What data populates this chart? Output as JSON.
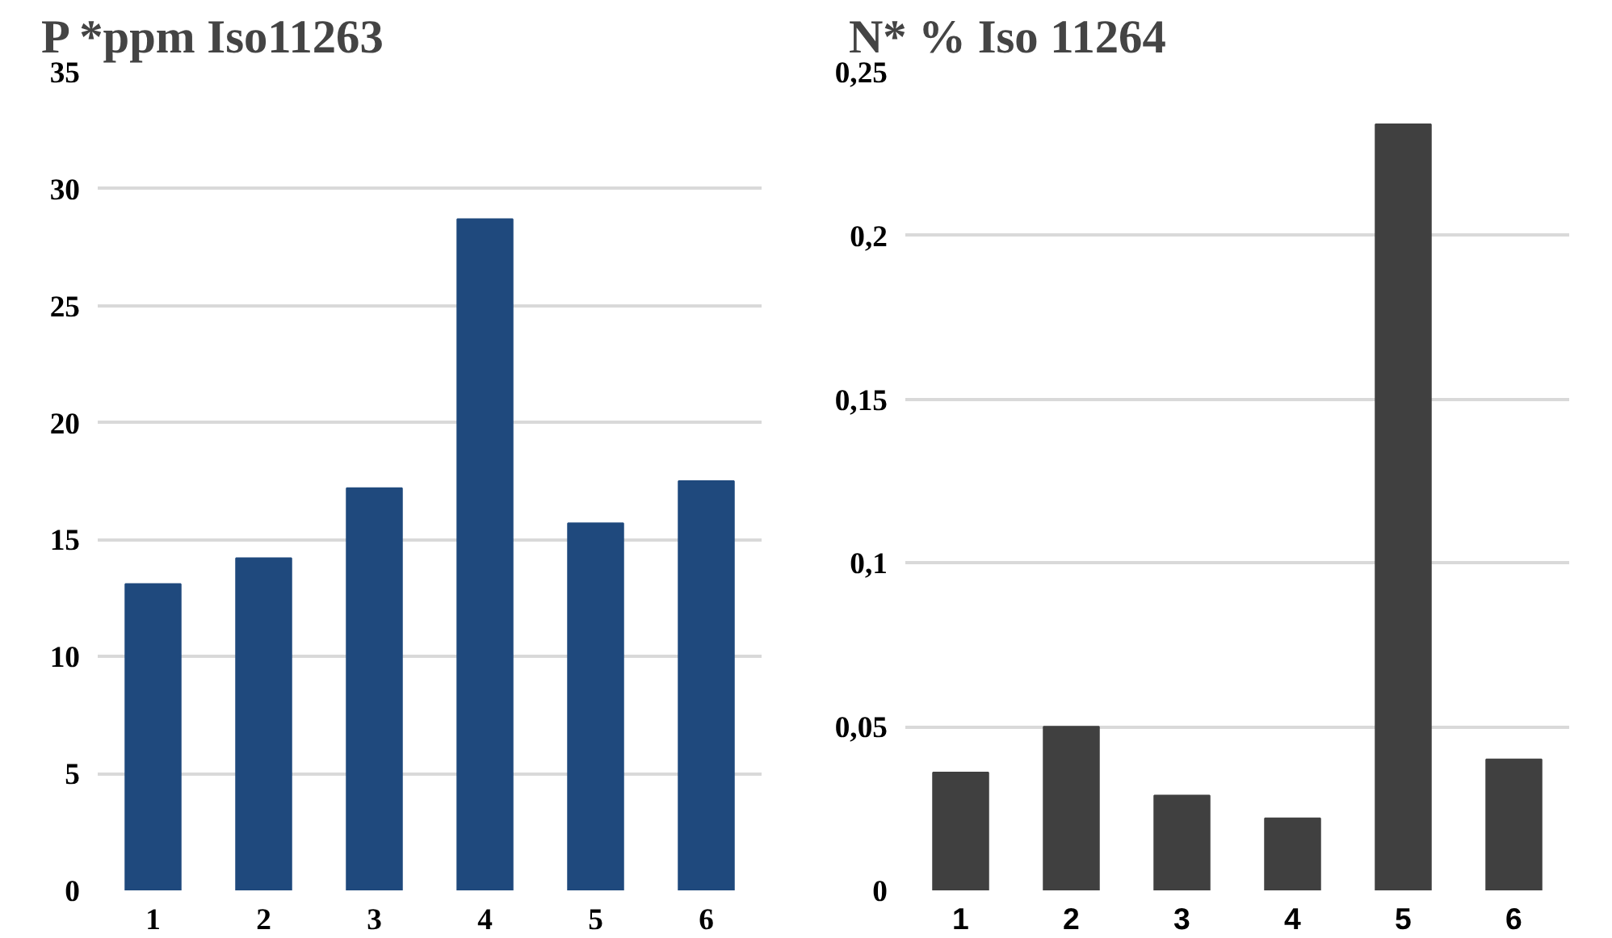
{
  "chart_data": [
    {
      "type": "bar",
      "title": "P *ppm Iso11263",
      "categories": [
        "1",
        "2",
        "3",
        "4",
        "5",
        "6"
      ],
      "values": [
        13.1,
        14.2,
        17.2,
        28.7,
        15.7,
        17.5
      ],
      "color": "#1f497d",
      "ylim": [
        0,
        35
      ],
      "yticks": [
        0,
        5,
        10,
        15,
        20,
        25,
        30,
        35
      ],
      "grid": "y"
    },
    {
      "type": "bar",
      "title": "N* % Iso 11264",
      "categories": [
        "1",
        "2",
        "3",
        "4",
        "5",
        "6"
      ],
      "values": [
        0.036,
        0.05,
        0.029,
        0.022,
        0.234,
        0.04
      ],
      "color": "#404040",
      "ylim": [
        0,
        0.25
      ],
      "yticks": [
        0,
        {
          "value": 0.05,
          "label": "0,05"
        },
        {
          "value": 0.1,
          "label": "0,1"
        },
        {
          "value": 0.15,
          "label": "0,15"
        },
        {
          "value": 0.2,
          "label": "0,2"
        },
        {
          "value": 0.25,
          "label": "0,25"
        }
      ],
      "grid": "y"
    }
  ]
}
